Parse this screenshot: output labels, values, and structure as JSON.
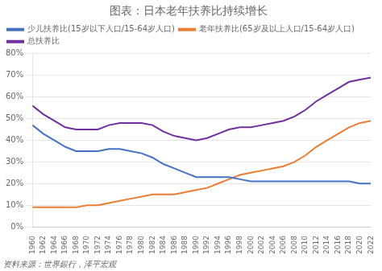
{
  "chart_data": {
    "type": "line",
    "title": "图表：日本老年扶养比持续增长",
    "annotations": [
      "资料来源：世界銀行，泽平宏观"
    ],
    "x": [
      1960,
      1962,
      1964,
      1966,
      1968,
      1970,
      1972,
      1974,
      1976,
      1978,
      1980,
      1982,
      1984,
      1986,
      1988,
      1990,
      1992,
      1994,
      1996,
      1998,
      2000,
      2002,
      2004,
      2006,
      2008,
      2010,
      2012,
      2014,
      2016,
      2018,
      2020,
      2022
    ],
    "series": [
      {
        "name": "少儿扶养比(15岁以下人口/15-64岁人口)",
        "color": "#4472C4",
        "values": [
          47,
          43,
          40,
          37,
          35,
          35,
          35,
          36,
          36,
          35,
          34,
          32,
          29,
          27,
          25,
          23,
          23,
          23,
          23,
          22,
          21,
          21,
          21,
          21,
          21,
          21,
          21,
          21,
          21,
          21,
          20,
          20
        ]
      },
      {
        "name": "老年扶养比(65岁及以上人口/15-64岁人口)",
        "color": "#ED7D31",
        "values": [
          9,
          9,
          9,
          9,
          9,
          10,
          10,
          11,
          12,
          13,
          14,
          15,
          15,
          15,
          16,
          17,
          18,
          20,
          22,
          24,
          25,
          26,
          27,
          28,
          30,
          33,
          37,
          40,
          43,
          46,
          48,
          49
        ]
      },
      {
        "name": "总扶养比",
        "color": "#7030A0",
        "values": [
          56,
          52,
          49,
          46,
          45,
          45,
          45,
          47,
          48,
          48,
          48,
          47,
          44,
          42,
          41,
          40,
          41,
          43,
          45,
          46,
          46,
          47,
          48,
          49,
          51,
          54,
          58,
          61,
          64,
          67,
          68,
          69
        ]
      }
    ],
    "xlim": [
      1960,
      2022
    ],
    "xticks": [
      1960,
      1962,
      1964,
      1966,
      1968,
      1970,
      1972,
      1974,
      1976,
      1978,
      1980,
      1982,
      1984,
      1986,
      1988,
      1990,
      1992,
      1994,
      1996,
      1998,
      2000,
      2002,
      2004,
      2006,
      2008,
      2010,
      2012,
      2014,
      2016,
      2018,
      2020,
      2022
    ],
    "ylim": [
      0,
      80
    ],
    "yticks": [
      {
        "value": 0,
        "label": "0%"
      },
      {
        "value": 10,
        "label": "10%"
      },
      {
        "value": 20,
        "label": "20%"
      },
      {
        "value": 30,
        "label": "30%"
      },
      {
        "value": 40,
        "label": "40%"
      },
      {
        "value": 50,
        "label": "50%"
      },
      {
        "value": 60,
        "label": "60%"
      },
      {
        "value": 70,
        "label": "70%"
      },
      {
        "value": 80,
        "label": "80%"
      }
    ],
    "grid": "y",
    "legend": "upper left"
  }
}
